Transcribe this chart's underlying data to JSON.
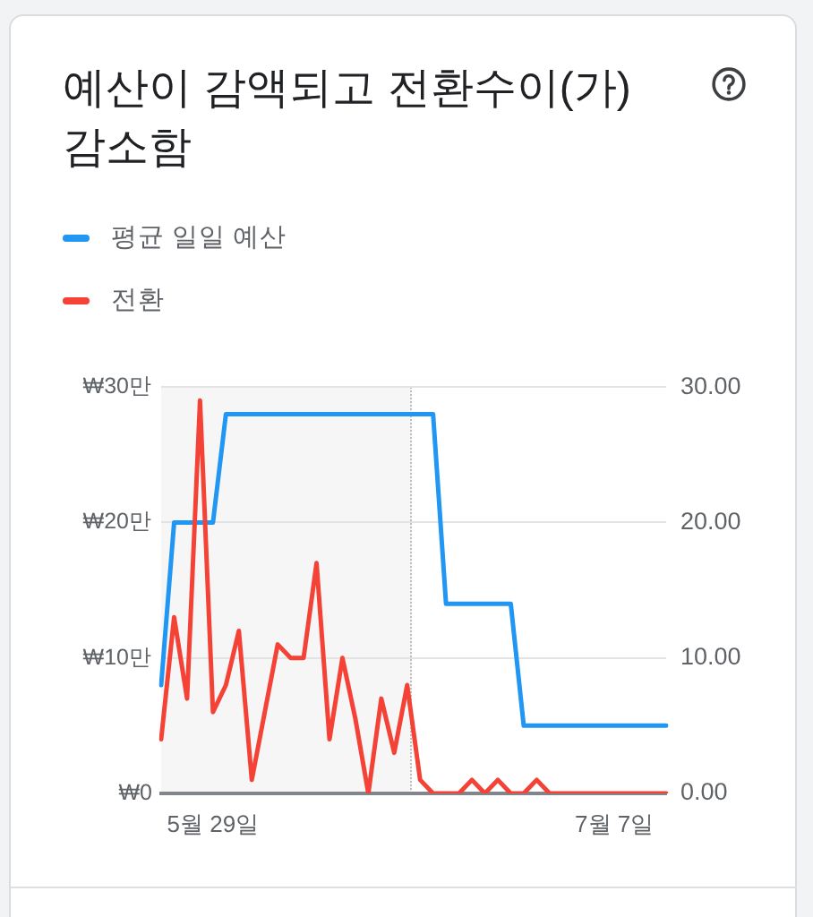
{
  "chart_data": {
    "type": "line",
    "title": "예산이 감액되고 전환수이(가) 감소함",
    "categories": [
      null,
      null,
      null,
      null,
      "5월 29일",
      null,
      null,
      null,
      null,
      null,
      null,
      null,
      null,
      null,
      null,
      null,
      null,
      null,
      null,
      null,
      null,
      null,
      null,
      null,
      null,
      null,
      null,
      null,
      null,
      null,
      null,
      null,
      null,
      null,
      null,
      "7월 7일",
      null,
      null,
      null,
      null
    ],
    "series": [
      {
        "name": "평균 일일 예산",
        "color": "#2196f3",
        "values": [
          8,
          20,
          20,
          20,
          20,
          28,
          28,
          28,
          28,
          28,
          28,
          28,
          28,
          28,
          28,
          28,
          28,
          28,
          28,
          28,
          28,
          28,
          14,
          14,
          14,
          14,
          14,
          14,
          5,
          5,
          5,
          5,
          5,
          5,
          5,
          5,
          5,
          5,
          5,
          5
        ]
      },
      {
        "name": "전환",
        "color": "#f44336",
        "values": [
          4,
          13,
          7,
          29,
          6,
          8,
          12,
          1,
          6,
          11,
          10,
          10,
          17,
          4,
          10,
          5.5,
          0,
          7,
          3,
          8,
          1,
          0,
          0,
          0,
          1,
          0,
          1,
          0,
          0,
          1,
          0,
          0,
          0,
          0,
          0,
          0,
          0,
          0,
          0,
          0
        ]
      }
    ],
    "ylim": [
      0,
      30
    ],
    "yticks": [
      {
        "value": 0,
        "label": "₩0"
      },
      {
        "value": 10,
        "label": "₩10만"
      },
      {
        "value": 20,
        "label": "₩20만"
      },
      {
        "value": 30,
        "label": "₩30만"
      }
    ],
    "y2lim": [
      0,
      30
    ],
    "y2ticks": [
      {
        "value": 0,
        "label": "0.00"
      },
      {
        "value": 10,
        "label": "10.00"
      },
      {
        "value": 20,
        "label": "20.00"
      },
      {
        "value": 30,
        "label": "30.00"
      }
    ],
    "grid": "y",
    "legend": "top left",
    "marker": "none"
  }
}
